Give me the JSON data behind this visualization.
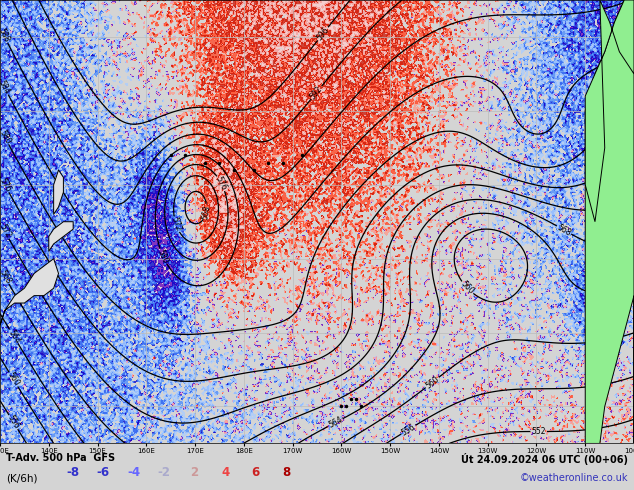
{
  "title_left": "T-Adv. 500 hPa  GFS",
  "title_right": "Út 24.09.2024 06 UTC (00+06)",
  "unit_label": "(K/6h)",
  "legend_values": [
    -8,
    -6,
    -4,
    -2,
    2,
    4,
    6,
    8
  ],
  "legend_colors": [
    "#0000cc",
    "#3333ee",
    "#6666ff",
    "#aaaaff",
    "#ffaaaa",
    "#ff6666",
    "#ee3333",
    "#cc0000"
  ],
  "legend_text_colors": [
    "#3333cc",
    "#3333cc",
    "#6666ff",
    "#aaaaaa",
    "#ffaaaa",
    "#ee6666",
    "#cc3333",
    "#cc0000"
  ],
  "watermark": "©weatheronline.co.uk",
  "bg_color": "#d4d4d4",
  "map_bg": "#d4d4d4",
  "land_color": "#90ee90",
  "contour_color": "#000000",
  "grid_color": "#bbbbbb",
  "figsize": [
    6.34,
    4.9
  ],
  "dpi": 100,
  "bottom_bar_color": "#d4d4d4",
  "bottom_bar_height": 0.095
}
